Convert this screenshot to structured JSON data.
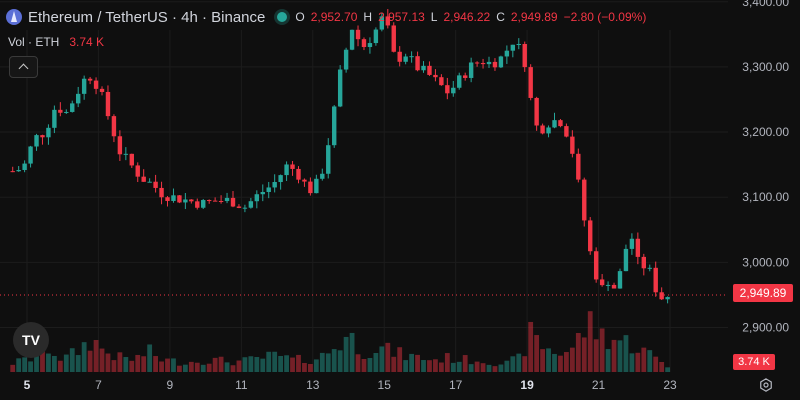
{
  "header": {
    "title": "Ethereum / TetherUS · 4h · Binance",
    "open_label": "O",
    "open": "2,952.70",
    "high_label": "H",
    "high": "2,957.13",
    "low_label": "L",
    "low": "2,946.22",
    "close_label": "C",
    "close": "2,949.89",
    "change": "−2.80 (−0.09%)"
  },
  "volume": {
    "label": "Vol · ETH",
    "value": "3.74 K"
  },
  "last_price_tag": "2,949.89",
  "volume_tag": "3.74 K",
  "logo_text": "TV",
  "colors": {
    "up": "#26a69a",
    "down": "#f23645",
    "background": "#0f0f0f",
    "grid": "#1c1c1c",
    "axis_text": "#b2b5be"
  },
  "chart_data": {
    "type": "candlestick",
    "x_tick_labels": [
      "5",
      "7",
      "9",
      "11",
      "13",
      "15",
      "17",
      "19",
      "21",
      "23"
    ],
    "y_tick_labels": [
      "2,900.00",
      "3,000.00",
      "3,100.00",
      "3,200.00",
      "3,300.00",
      "3,400.00"
    ],
    "ylim": [
      2870,
      3430
    ],
    "last_price": 2949.89,
    "close_path": [
      [
        4.6,
        3140
      ],
      [
        4.9,
        3145
      ],
      [
        5.2,
        3190
      ],
      [
        5.5,
        3200
      ],
      [
        5.8,
        3240
      ],
      [
        6.1,
        3230
      ],
      [
        6.4,
        3260
      ],
      [
        6.7,
        3290
      ],
      [
        7.0,
        3270
      ],
      [
        7.3,
        3220
      ],
      [
        7.6,
        3170
      ],
      [
        7.9,
        3150
      ],
      [
        8.2,
        3130
      ],
      [
        8.5,
        3120
      ],
      [
        8.8,
        3105
      ],
      [
        9.1,
        3100
      ],
      [
        9.5,
        3095
      ],
      [
        9.9,
        3090
      ],
      [
        10.3,
        3095
      ],
      [
        10.7,
        3095
      ],
      [
        11.1,
        3085
      ],
      [
        11.5,
        3105
      ],
      [
        11.9,
        3120
      ],
      [
        12.3,
        3150
      ],
      [
        12.6,
        3135
      ],
      [
        12.9,
        3110
      ],
      [
        13.2,
        3125
      ],
      [
        13.5,
        3200
      ],
      [
        13.8,
        3300
      ],
      [
        14.1,
        3360
      ],
      [
        14.4,
        3330
      ],
      [
        14.7,
        3350
      ],
      [
        15.0,
        3380
      ],
      [
        15.3,
        3310
      ],
      [
        15.6,
        3320
      ],
      [
        15.9,
        3300
      ],
      [
        16.2,
        3290
      ],
      [
        16.5,
        3275
      ],
      [
        16.8,
        3260
      ],
      [
        17.1,
        3280
      ],
      [
        17.4,
        3300
      ],
      [
        17.7,
        3310
      ],
      [
        18.0,
        3305
      ],
      [
        18.3,
        3315
      ],
      [
        18.6,
        3340
      ],
      [
        18.9,
        3320
      ],
      [
        19.1,
        3250
      ],
      [
        19.3,
        3200
      ],
      [
        19.6,
        3215
      ],
      [
        19.9,
        3220
      ],
      [
        20.2,
        3190
      ],
      [
        20.5,
        3100
      ],
      [
        20.7,
        3030
      ],
      [
        20.9,
        2985
      ],
      [
        21.1,
        2960
      ],
      [
        21.3,
        2975
      ],
      [
        21.5,
        2955
      ],
      [
        21.7,
        3010
      ],
      [
        21.9,
        3045
      ],
      [
        22.1,
        3000
      ],
      [
        22.4,
        2990
      ],
      [
        22.7,
        2945
      ],
      [
        23.0,
        2950
      ]
    ],
    "volume_max_k": 22,
    "volume_path": [
      [
        4.6,
        2.2
      ],
      [
        5.2,
        3.5
      ],
      [
        5.6,
        6.0
      ],
      [
        6.0,
        3.0
      ],
      [
        6.4,
        5.0
      ],
      [
        6.8,
        8.0
      ],
      [
        7.2,
        5.0
      ],
      [
        7.6,
        3.5
      ],
      [
        8.0,
        3.0
      ],
      [
        8.4,
        5.0
      ],
      [
        8.8,
        3.0
      ],
      [
        9.2,
        2.5
      ],
      [
        9.6,
        2.5
      ],
      [
        10.0,
        3.0
      ],
      [
        10.4,
        2.8
      ],
      [
        10.8,
        2.5
      ],
      [
        11.2,
        2.8
      ],
      [
        11.6,
        3.5
      ],
      [
        12.0,
        4.0
      ],
      [
        12.4,
        3.0
      ],
      [
        12.8,
        3.0
      ],
      [
        13.2,
        3.5
      ],
      [
        13.6,
        6.0
      ],
      [
        14.0,
        9.0
      ],
      [
        14.4,
        5.0
      ],
      [
        14.8,
        6.0
      ],
      [
        15.2,
        5.0
      ],
      [
        15.6,
        4.0
      ],
      [
        16.0,
        3.5
      ],
      [
        16.4,
        3.0
      ],
      [
        16.8,
        3.5
      ],
      [
        17.2,
        3.0
      ],
      [
        17.6,
        3.0
      ],
      [
        18.0,
        2.5
      ],
      [
        18.4,
        2.0
      ],
      [
        18.8,
        3.5
      ],
      [
        19.1,
        9.0
      ],
      [
        19.5,
        6.0
      ],
      [
        19.9,
        4.5
      ],
      [
        20.3,
        6.0
      ],
      [
        20.7,
        12.0
      ],
      [
        21.1,
        9.0
      ],
      [
        21.5,
        8.0
      ],
      [
        21.9,
        7.0
      ],
      [
        22.3,
        5.0
      ],
      [
        22.7,
        3.0
      ],
      [
        23.0,
        1.0
      ]
    ]
  }
}
